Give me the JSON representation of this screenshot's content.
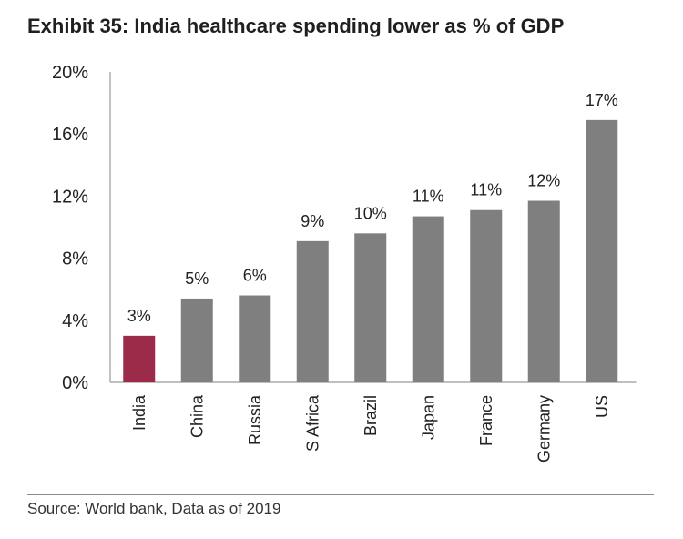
{
  "title": "Exhibit 35: India healthcare spending lower as % of GDP",
  "source": "Source: World bank, Data as of 2019",
  "colors": {
    "highlight": "#9c2b4a",
    "bar": "#7f7f7f",
    "axis": "#9a9a9a"
  },
  "chart_data": {
    "type": "bar",
    "categories": [
      "India",
      "China",
      "Russia",
      "S Africa",
      "Brazil",
      "Japan",
      "France",
      "Germany",
      "US"
    ],
    "values": [
      3.0,
      5.4,
      5.6,
      9.1,
      9.6,
      10.7,
      11.1,
      11.7,
      16.9
    ],
    "data_labels": [
      "3%",
      "5%",
      "6%",
      "9%",
      "10%",
      "11%",
      "11%",
      "12%",
      "17%"
    ],
    "highlight_category": "India",
    "yticks": [
      "0%",
      "4%",
      "8%",
      "12%",
      "16%",
      "20%"
    ],
    "ylim": [
      0,
      20
    ],
    "grid": false
  }
}
